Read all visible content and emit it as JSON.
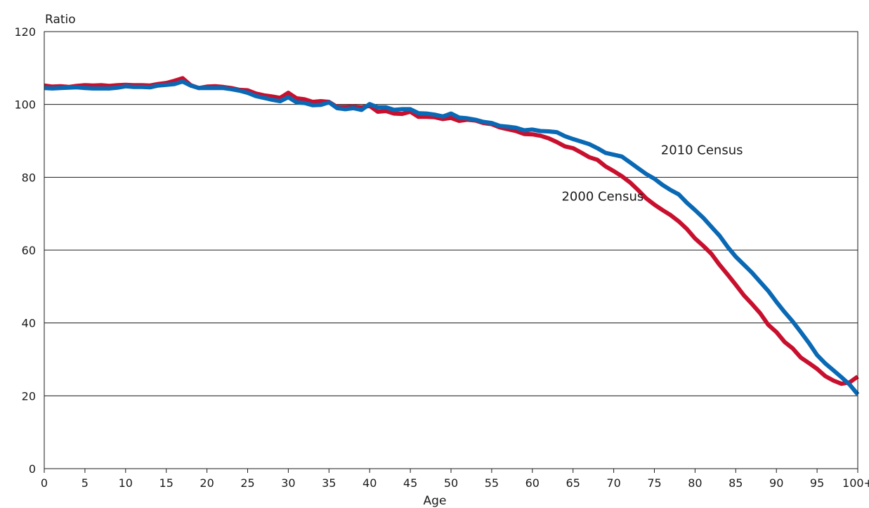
{
  "chart_data": {
    "type": "line",
    "title": "",
    "xlabel": "Age",
    "ylabel": "Ratio",
    "xlim": [
      0,
      100
    ],
    "ylim": [
      0,
      120
    ],
    "yticks": [
      0,
      20,
      40,
      60,
      80,
      100,
      120
    ],
    "xtick_values": [
      0,
      5,
      10,
      15,
      20,
      25,
      30,
      35,
      40,
      45,
      50,
      55,
      60,
      65,
      70,
      75,
      80,
      85,
      90,
      95,
      100
    ],
    "xtick_labels": [
      "0",
      "5",
      "10",
      "15",
      "20",
      "25",
      "30",
      "35",
      "40",
      "45",
      "50",
      "55",
      "60",
      "65",
      "70",
      "75",
      "80",
      "85",
      "90",
      "95",
      "100+"
    ],
    "grid": "horizontal",
    "legend": "inline-labels",
    "series": [
      {
        "name": "2000 Census",
        "color": "#c8102e",
        "x": [
          0,
          1,
          2,
          3,
          4,
          5,
          6,
          7,
          8,
          9,
          10,
          11,
          12,
          13,
          14,
          15,
          16,
          17,
          18,
          19,
          20,
          21,
          22,
          23,
          24,
          25,
          26,
          27,
          28,
          29,
          30,
          31,
          32,
          33,
          34,
          35,
          36,
          37,
          38,
          39,
          40,
          41,
          42,
          43,
          44,
          45,
          46,
          47,
          48,
          49,
          50,
          51,
          52,
          53,
          54,
          55,
          56,
          57,
          58,
          59,
          60,
          61,
          62,
          63,
          64,
          65,
          66,
          67,
          68,
          69,
          70,
          71,
          72,
          73,
          74,
          75,
          76,
          77,
          78,
          79,
          80,
          81,
          82,
          83,
          84,
          85,
          86,
          87,
          88,
          89,
          90,
          91,
          92,
          93,
          94,
          95,
          96,
          97,
          98,
          99,
          100
        ],
        "y": [
          105.2,
          104.9,
          105.0,
          104.8,
          105.1,
          105.3,
          105.2,
          105.3,
          105.1,
          105.3,
          105.4,
          105.3,
          105.3,
          105.2,
          105.6,
          105.9,
          106.5,
          107.2,
          105.3,
          104.5,
          104.9,
          105.0,
          104.8,
          104.5,
          104.0,
          103.9,
          103.0,
          102.5,
          102.2,
          101.8,
          103.2,
          101.7,
          101.4,
          100.7,
          100.9,
          100.7,
          99.3,
          99.3,
          99.4,
          99.2,
          99.6,
          98.0,
          98.2,
          97.5,
          97.4,
          98.0,
          96.6,
          96.6,
          96.5,
          96.0,
          96.3,
          95.5,
          95.8,
          95.6,
          94.9,
          94.6,
          93.7,
          93.2,
          92.7,
          91.9,
          91.8,
          91.4,
          90.7,
          89.7,
          88.5,
          88.0,
          86.8,
          85.5,
          84.8,
          83.0,
          81.7,
          80.3,
          78.6,
          76.5,
          74.2,
          72.5,
          71.0,
          69.6,
          67.9,
          65.8,
          63.2,
          61.2,
          59.0,
          56.0,
          53.3,
          50.5,
          47.6,
          45.2,
          42.7,
          39.5,
          37.5,
          34.8,
          33.0,
          30.5,
          29.0,
          27.4,
          25.4,
          24.2,
          23.3,
          23.7,
          25.3
        ]
      },
      {
        "name": "2010 Census",
        "color": "#0a69b4",
        "x": [
          0,
          1,
          2,
          3,
          4,
          5,
          6,
          7,
          8,
          9,
          10,
          11,
          12,
          13,
          14,
          15,
          16,
          17,
          18,
          19,
          20,
          21,
          22,
          23,
          24,
          25,
          26,
          27,
          28,
          29,
          30,
          31,
          32,
          33,
          34,
          35,
          36,
          37,
          38,
          39,
          40,
          41,
          42,
          43,
          44,
          45,
          46,
          47,
          48,
          49,
          50,
          51,
          52,
          53,
          54,
          55,
          56,
          57,
          58,
          59,
          60,
          61,
          62,
          63,
          64,
          65,
          66,
          67,
          68,
          69,
          70,
          71,
          72,
          73,
          74,
          75,
          76,
          77,
          78,
          79,
          80,
          81,
          82,
          83,
          84,
          85,
          86,
          87,
          88,
          89,
          90,
          91,
          92,
          93,
          94,
          95,
          96,
          97,
          98,
          99,
          100
        ],
        "y": [
          104.5,
          104.4,
          104.5,
          104.6,
          104.7,
          104.5,
          104.4,
          104.4,
          104.4,
          104.6,
          105.0,
          104.8,
          104.8,
          104.7,
          105.2,
          105.4,
          105.6,
          106.3,
          105.2,
          104.5,
          104.5,
          104.5,
          104.5,
          104.2,
          103.8,
          103.2,
          102.3,
          101.8,
          101.3,
          100.9,
          102.0,
          100.6,
          100.4,
          99.8,
          99.9,
          100.6,
          99.0,
          98.7,
          99.0,
          98.5,
          100.1,
          99.2,
          99.2,
          98.5,
          98.7,
          98.7,
          97.6,
          97.5,
          97.2,
          96.7,
          97.5,
          96.4,
          96.2,
          95.8,
          95.2,
          94.9,
          94.1,
          93.9,
          93.6,
          92.9,
          93.1,
          92.7,
          92.6,
          92.4,
          91.3,
          90.5,
          89.8,
          89.1,
          88.0,
          86.7,
          86.2,
          85.7,
          84.1,
          82.5,
          80.9,
          79.6,
          77.9,
          76.5,
          75.3,
          73.0,
          71.0,
          68.9,
          66.4,
          64.0,
          60.9,
          58.2,
          56.0,
          53.8,
          51.3,
          48.8,
          45.8,
          43.0,
          40.4,
          37.5,
          34.5,
          31.2,
          28.9,
          27.0,
          25.1,
          23.1,
          20.4
        ]
      }
    ],
    "annotations": [
      {
        "text": "2010 Census",
        "x": 75.8,
        "y": 86.3
      },
      {
        "text": "2000 Census",
        "x": 63.6,
        "y": 73.6
      }
    ]
  }
}
